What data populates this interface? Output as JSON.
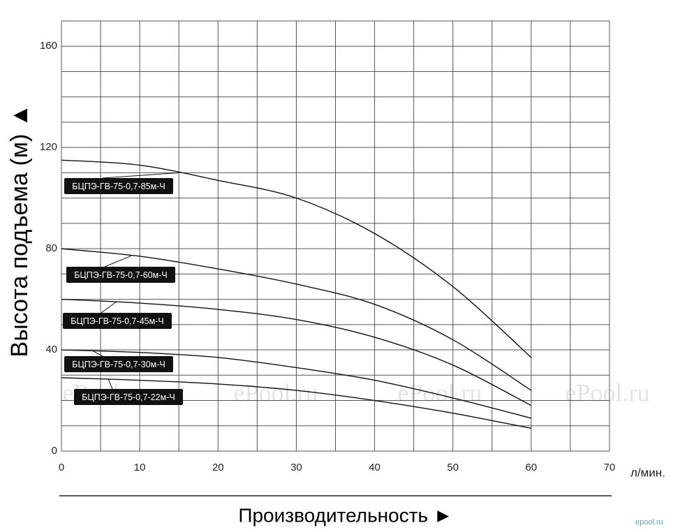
{
  "chart_data": {
    "type": "line",
    "ylabel": "Высота подъема (м) ▲",
    "xlabel": "Производительность ►",
    "xunit": "л/мин.",
    "x": [
      0,
      10,
      20,
      30,
      40,
      50,
      60
    ],
    "series": [
      {
        "name": "БЦПЭ-ГВ-75-0,7-85м-Ч",
        "color": "#111111",
        "values": [
          115,
          113,
          107,
          100,
          86,
          65,
          37
        ]
      },
      {
        "name": "БЦПЭ-ГВ-75-0,7-60м-Ч",
        "color": "#111111",
        "values": [
          80,
          77,
          72,
          66,
          58,
          44,
          24
        ]
      },
      {
        "name": "БЦПЭ-ГВ-75-0,7-45м-Ч",
        "color": "#111111",
        "values": [
          60,
          58.5,
          56,
          52,
          45,
          34,
          18
        ]
      },
      {
        "name": "БЦПЭ-ГВ-75-0,7-30м-Ч",
        "color": "#111111",
        "values": [
          40,
          39,
          37,
          33,
          28,
          21,
          13
        ]
      },
      {
        "name": "БЦПЭ-ГВ-75-0,7-22м-Ч",
        "color": "#111111",
        "values": [
          29,
          28,
          26.5,
          24,
          20,
          15,
          9
        ]
      }
    ],
    "xlim": [
      0,
      70
    ],
    "ylim": [
      0,
      170
    ],
    "xticks": [
      0,
      10,
      20,
      30,
      40,
      50,
      60,
      70
    ],
    "yticks": [
      0,
      40,
      80,
      120,
      160
    ],
    "xgrid": [
      0,
      5,
      10,
      15,
      20,
      25,
      30,
      35,
      40,
      45,
      50,
      55,
      60,
      65,
      70
    ],
    "ygrid": [
      0,
      10,
      20,
      30,
      40,
      50,
      60,
      70,
      80,
      90,
      100,
      110,
      120,
      130,
      140,
      150,
      160,
      170
    ],
    "grid": true,
    "watermarks": [
      "ePool.ru",
      "ePool.ru",
      "ePool.ru",
      "ePool.ru"
    ],
    "logo": "epool.ru"
  }
}
